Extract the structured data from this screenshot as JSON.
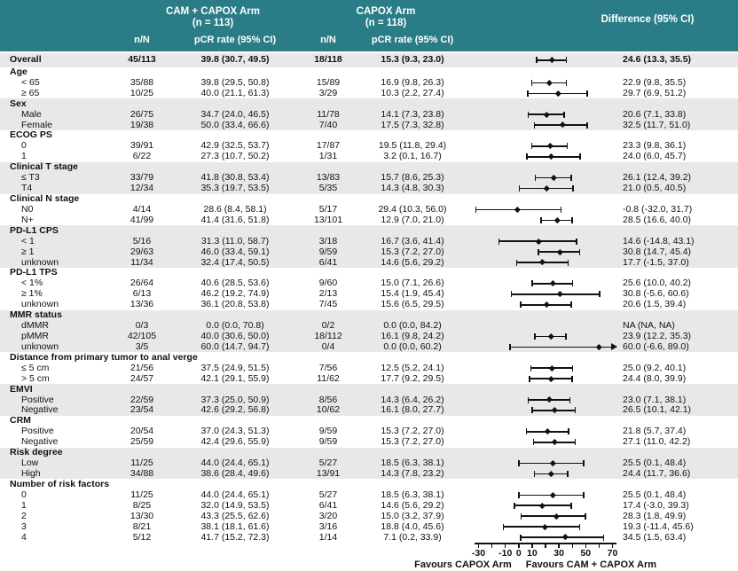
{
  "header": {
    "arm1_title": "CAM + CAPOX Arm",
    "arm1_n": "(n = 113)",
    "arm2_title": "CAPOX Arm",
    "arm2_n": "(n = 118)",
    "col_nN": "n/N",
    "col_pcr": "pCR rate (95% CI)",
    "col_diff": "Difference (95% CI)"
  },
  "colors": {
    "header_bg": "#2a7d86",
    "stripe_gray": "#e8e8e8",
    "band_green": "#d8ede3",
    "zero_line": "#666666",
    "text": "#111111"
  },
  "chart_data": {
    "type": "forest",
    "x_axis": {
      "range": [
        -30,
        70
      ],
      "minor_tick_step": 10,
      "labeled_ticks": [
        -30,
        -10,
        0,
        10,
        30,
        50,
        70
      ],
      "zero_reference": 0
    },
    "shaded_band": [
      13.3,
      35.5
    ],
    "footer": {
      "favours_left": "Favours CAPOX Arm",
      "favours_right": "Favours CAM + CAPOX Arm"
    },
    "overall": {
      "label": "Overall",
      "a_nN": "45/113",
      "a_pcr": "39.8 (30.7, 49.5)",
      "c_nN": "18/118",
      "c_pcr": "15.3 (9.3, 23.0)",
      "diff": "24.6 (13.3, 35.5)",
      "est": 24.6,
      "lo": 13.3,
      "hi": 35.5
    },
    "sections": [
      {
        "title": "Age",
        "shaded": false,
        "rows": [
          {
            "label": "< 65",
            "a_nN": "35/88",
            "a_pcr": "39.8 (29.5, 50.8)",
            "c_nN": "15/89",
            "c_pcr": "16.9 (9.8, 26.3)",
            "diff": "22.9 (9.8, 35.5)",
            "est": 22.9,
            "lo": 9.8,
            "hi": 35.5
          },
          {
            "label": "≥ 65",
            "a_nN": "10/25",
            "a_pcr": "40.0 (21.1, 61.3)",
            "c_nN": "3/29",
            "c_pcr": "10.3 (2.2, 27.4)",
            "diff": "29.7 (6.9, 51.2)",
            "est": 29.7,
            "lo": 6.9,
            "hi": 51.2
          }
        ]
      },
      {
        "title": "Sex",
        "shaded": true,
        "rows": [
          {
            "label": "Male",
            "a_nN": "26/75",
            "a_pcr": "34.7 (24.0, 46.5)",
            "c_nN": "11/78",
            "c_pcr": "14.1 (7.3, 23.8)",
            "diff": "20.6 (7.1, 33.8)",
            "est": 20.6,
            "lo": 7.1,
            "hi": 33.8
          },
          {
            "label": "Female",
            "a_nN": "19/38",
            "a_pcr": "50.0 (33.4, 66.6)",
            "c_nN": "7/40",
            "c_pcr": "17.5 (7.3, 32.8)",
            "diff": "32.5 (11.7, 51.0)",
            "est": 32.5,
            "lo": 11.7,
            "hi": 51.0
          }
        ]
      },
      {
        "title": "ECOG PS",
        "shaded": false,
        "rows": [
          {
            "label": "0",
            "a_nN": "39/91",
            "a_pcr": "42.9 (32.5, 53.7)",
            "c_nN": "17/87",
            "c_pcr": "19.5 (11.8, 29.4)",
            "diff": "23.3 (9.8, 36.1)",
            "est": 23.3,
            "lo": 9.8,
            "hi": 36.1
          },
          {
            "label": "1",
            "a_nN": "6/22",
            "a_pcr": "27.3 (10.7, 50.2)",
            "c_nN": "1/31",
            "c_pcr": "3.2 (0.1, 16.7)",
            "diff": "24.0 (6.0, 45.7)",
            "est": 24.0,
            "lo": 6.0,
            "hi": 45.7
          }
        ]
      },
      {
        "title": "Clinical T stage",
        "shaded": true,
        "rows": [
          {
            "label": "≤ T3",
            "a_nN": "33/79",
            "a_pcr": "41.8 (30.8, 53.4)",
            "c_nN": "13/83",
            "c_pcr": "15.7 (8.6, 25.3)",
            "diff": "26.1 (12.4, 39.2)",
            "est": 26.1,
            "lo": 12.4,
            "hi": 39.2
          },
          {
            "label": "T4",
            "a_nN": "12/34",
            "a_pcr": "35.3 (19.7, 53.5)",
            "c_nN": "5/35",
            "c_pcr": "14.3 (4.8, 30.3)",
            "diff": "21.0 (0.5, 40.5)",
            "est": 21.0,
            "lo": 0.5,
            "hi": 40.5
          }
        ]
      },
      {
        "title": "Clinical N stage",
        "shaded": false,
        "rows": [
          {
            "label": "N0",
            "a_nN": "4/14",
            "a_pcr": "28.6 (8.4, 58.1)",
            "c_nN": "5/17",
            "c_pcr": "29.4 (10.3, 56.0)",
            "diff": "-0.8 (-32.0, 31.7)",
            "est": -0.8,
            "lo": -32.0,
            "hi": 31.7
          },
          {
            "label": "N+",
            "a_nN": "41/99",
            "a_pcr": "41.4 (31.6, 51.8)",
            "c_nN": "13/101",
            "c_pcr": "12.9 (7.0, 21.0)",
            "diff": "28.5 (16.6, 40.0)",
            "est": 28.5,
            "lo": 16.6,
            "hi": 40.0
          }
        ]
      },
      {
        "title": "PD-L1 CPS",
        "shaded": true,
        "rows": [
          {
            "label": "< 1",
            "a_nN": "5/16",
            "a_pcr": "31.3 (11.0, 58.7)",
            "c_nN": "3/18",
            "c_pcr": "16.7 (3.6, 41.4)",
            "diff": "14.6 (-14.8, 43.1)",
            "est": 14.6,
            "lo": -14.8,
            "hi": 43.1
          },
          {
            "label": "≥ 1",
            "a_nN": "29/63",
            "a_pcr": "46.0 (33.4, 59.1)",
            "c_nN": "9/59",
            "c_pcr": "15.3 (7.2, 27.0)",
            "diff": "30.8 (14.7, 45.4)",
            "est": 30.8,
            "lo": 14.7,
            "hi": 45.4
          },
          {
            "label": "unknown",
            "a_nN": "11/34",
            "a_pcr": "32.4 (17.4, 50.5)",
            "c_nN": "6/41",
            "c_pcr": "14.6 (5.6, 29.2)",
            "diff": "17.7 (-1.5, 37.0)",
            "est": 17.7,
            "lo": -1.5,
            "hi": 37.0
          }
        ]
      },
      {
        "title": "PD-L1 TPS",
        "shaded": false,
        "rows": [
          {
            "label": "< 1%",
            "a_nN": "26/64",
            "a_pcr": "40.6 (28.5, 53.6)",
            "c_nN": "9/60",
            "c_pcr": "15.0 (7.1, 26.6)",
            "diff": "25.6 (10.0, 40.2)",
            "est": 25.6,
            "lo": 10.0,
            "hi": 40.2
          },
          {
            "label": "≥ 1%",
            "a_nN": "6/13",
            "a_pcr": "46.2 (19.2, 74.9)",
            "c_nN": "2/13",
            "c_pcr": "15.4 (1.9, 45.4)",
            "diff": "30.8 (-5.6, 60.6)",
            "est": 30.8,
            "lo": -5.6,
            "hi": 60.6
          },
          {
            "label": "unknown",
            "a_nN": "13/36",
            "a_pcr": "36.1 (20.8, 53.8)",
            "c_nN": "7/45",
            "c_pcr": "15.6 (6.5, 29.5)",
            "diff": "20.6 (1.5, 39.4)",
            "est": 20.6,
            "lo": 1.5,
            "hi": 39.4
          }
        ]
      },
      {
        "title": "MMR status",
        "shaded": true,
        "rows": [
          {
            "label": "dMMR",
            "a_nN": "0/3",
            "a_pcr": "0.0 (0.0, 70.8)",
            "c_nN": "0/2",
            "c_pcr": "0.0 (0.0, 84.2)",
            "diff": "NA (NA, NA)",
            "est": null,
            "lo": null,
            "hi": null
          },
          {
            "label": "pMMR",
            "a_nN": "42/105",
            "a_pcr": "40.0 (30.6, 50.0)",
            "c_nN": "18/112",
            "c_pcr": "16.1 (9.8, 24.2)",
            "diff": "23.9 (12.2, 35.3)",
            "est": 23.9,
            "lo": 12.2,
            "hi": 35.3
          },
          {
            "label": "unknown",
            "a_nN": "3/5",
            "a_pcr": "60.0 (14.7, 94.7)",
            "c_nN": "0/4",
            "c_pcr": "0.0 (0.0, 60.2)",
            "diff": "60.0 (-6.6, 89.0)",
            "est": 60.0,
            "lo": -6.6,
            "hi": 89.0
          }
        ]
      },
      {
        "title": "Distance from primary tumor to anal verge",
        "shaded": false,
        "rows": [
          {
            "label": "≤ 5 cm",
            "a_nN": "21/56",
            "a_pcr": "37.5 (24.9, 51.5)",
            "c_nN": "7/56",
            "c_pcr": "12.5 (5.2, 24.1)",
            "diff": "25.0 (9.2, 40.1)",
            "est": 25.0,
            "lo": 9.2,
            "hi": 40.1
          },
          {
            "label": "> 5 cm",
            "a_nN": "24/57",
            "a_pcr": "42.1 (29.1, 55.9)",
            "c_nN": "11/62",
            "c_pcr": "17.7 (9.2, 29.5)",
            "diff": "24.4 (8.0, 39.9)",
            "est": 24.4,
            "lo": 8.0,
            "hi": 39.9
          }
        ]
      },
      {
        "title": "EMVI",
        "shaded": true,
        "rows": [
          {
            "label": "Positive",
            "a_nN": "22/59",
            "a_pcr": "37.3 (25.0, 50.9)",
            "c_nN": "8/56",
            "c_pcr": "14.3 (6.4, 26.2)",
            "diff": "23.0 (7.1, 38.1)",
            "est": 23.0,
            "lo": 7.1,
            "hi": 38.1
          },
          {
            "label": "Negative",
            "a_nN": "23/54",
            "a_pcr": "42.6 (29.2, 56.8)",
            "c_nN": "10/62",
            "c_pcr": "16.1 (8.0, 27.7)",
            "diff": "26.5 (10.1, 42.1)",
            "est": 26.5,
            "lo": 10.1,
            "hi": 42.1
          }
        ]
      },
      {
        "title": "CRM",
        "shaded": false,
        "rows": [
          {
            "label": "Positive",
            "a_nN": "20/54",
            "a_pcr": "37.0 (24.3, 51.3)",
            "c_nN": "9/59",
            "c_pcr": "15.3 (7.2, 27.0)",
            "diff": "21.8 (5.7, 37.4)",
            "est": 21.8,
            "lo": 5.7,
            "hi": 37.4
          },
          {
            "label": "Negative",
            "a_nN": "25/59",
            "a_pcr": "42.4 (29.6, 55.9)",
            "c_nN": "9/59",
            "c_pcr": "15.3 (7.2, 27.0)",
            "diff": "27.1 (11.0, 42.2)",
            "est": 27.1,
            "lo": 11.0,
            "hi": 42.2
          }
        ]
      },
      {
        "title": "Risk degree",
        "shaded": true,
        "rows": [
          {
            "label": "Low",
            "a_nN": "11/25",
            "a_pcr": "44.0 (24.4, 65.1)",
            "c_nN": "5/27",
            "c_pcr": "18.5 (6.3, 38.1)",
            "diff": "25.5 (0.1, 48.4)",
            "est": 25.5,
            "lo": 0.1,
            "hi": 48.4
          },
          {
            "label": "High",
            "a_nN": "34/88",
            "a_pcr": "38.6 (28.4, 49.6)",
            "c_nN": "13/91",
            "c_pcr": "14.3 (7.8, 23.2)",
            "diff": "24.4 (11.7, 36.6)",
            "est": 24.4,
            "lo": 11.7,
            "hi": 36.6
          }
        ]
      },
      {
        "title": "Number of risk factors",
        "shaded": false,
        "rows": [
          {
            "label": "0",
            "a_nN": "11/25",
            "a_pcr": "44.0 (24.4, 65.1)",
            "c_nN": "5/27",
            "c_pcr": "18.5 (6.3, 38.1)",
            "diff": "25.5 (0.1, 48.4)",
            "est": 25.5,
            "lo": 0.1,
            "hi": 48.4
          },
          {
            "label": "1",
            "a_nN": "8/25",
            "a_pcr": "32.0 (14.9, 53.5)",
            "c_nN": "6/41",
            "c_pcr": "14.6 (5.6, 29.2)",
            "diff": "17.4 (-3.0, 39.3)",
            "est": 17.4,
            "lo": -3.0,
            "hi": 39.3
          },
          {
            "label": "2",
            "a_nN": "13/30",
            "a_pcr": "43.3 (25.5, 62.6)",
            "c_nN": "3/20",
            "c_pcr": "15.0 (3.2, 37.9)",
            "diff": "28.3 (1.8, 49.9)",
            "est": 28.3,
            "lo": 1.8,
            "hi": 49.9
          },
          {
            "label": "3",
            "a_nN": "8/21",
            "a_pcr": "38.1 (18.1, 61.6)",
            "c_nN": "3/16",
            "c_pcr": "18.8 (4.0, 45.6)",
            "diff": "19.3 (-11.4, 45.6)",
            "est": 19.3,
            "lo": -11.4,
            "hi": 45.6
          },
          {
            "label": "4",
            "a_nN": "5/12",
            "a_pcr": "41.7 (15.2, 72.3)",
            "c_nN": "1/14",
            "c_pcr": "7.1 (0.2, 33.9)",
            "diff": "34.5 (1.5, 63.4)",
            "est": 34.5,
            "lo": 1.5,
            "hi": 63.4
          }
        ]
      }
    ]
  }
}
